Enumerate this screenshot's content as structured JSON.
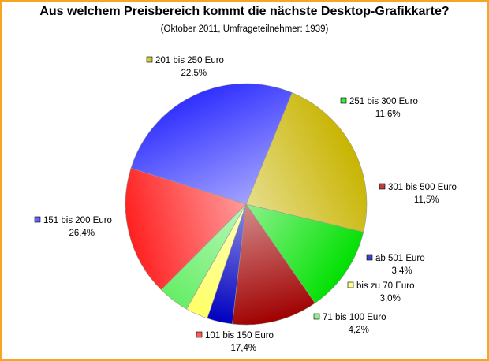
{
  "chart_data": {
    "type": "pie",
    "title": "Aus welchem Preisbereich kommt die nächste Desktop-Grafikkarte?",
    "subtitle": "(Oktober 2011, Umfrageteilnehmer: 1939)",
    "slices": [
      {
        "label": "201 bis 250 Euro",
        "value_text": "22,5%",
        "value": 22.5,
        "color": "#c8b400"
      },
      {
        "label": "251 bis 300 Euro",
        "value_text": "11,6%",
        "value": 11.6,
        "color": "#00e000"
      },
      {
        "label": "301 bis 500 Euro",
        "value_text": "11,5%",
        "value": 11.5,
        "color": "#a00000"
      },
      {
        "label": "ab 501 Euro",
        "value_text": "3,4%",
        "value": 3.4,
        "color": "#0000c0"
      },
      {
        "label": "bis zu 70 Euro",
        "value_text": "3,0%",
        "value": 3.0,
        "color": "#ffff66"
      },
      {
        "label": "71 bis 100 Euro",
        "value_text": "4,2%",
        "value": 4.2,
        "color": "#66ee66"
      },
      {
        "label": "101 bis 150 Euro",
        "value_text": "17,4%",
        "value": 17.4,
        "color": "#ff2020"
      },
      {
        "label": "151 bis 200 Euro",
        "value_text": "26,4%",
        "value": 26.4,
        "color": "#3030ff"
      }
    ]
  }
}
